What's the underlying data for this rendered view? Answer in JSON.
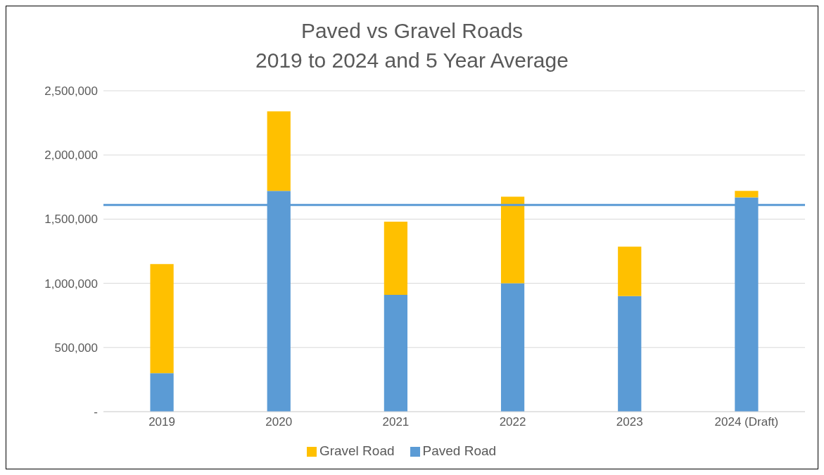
{
  "chart_data": {
    "type": "bar",
    "title": "Paved vs Gravel Roads",
    "subtitle": "2019 to 2024 and 5 Year Average",
    "categories": [
      "2019",
      "2020",
      "2021",
      "2022",
      "2023",
      "2024 (Draft)"
    ],
    "stacked": true,
    "series": [
      {
        "name": "Paved Road",
        "color": "#5b9bd5",
        "values": [
          300000,
          1720000,
          910000,
          1000000,
          900000,
          1670000
        ]
      },
      {
        "name": "Gravel Road",
        "color": "#ffc000",
        "values": [
          850000,
          620000,
          570000,
          675000,
          385000,
          50000
        ]
      }
    ],
    "ylim": [
      0,
      2500000
    ],
    "yticks": [
      {
        "value": 0,
        "label": "-"
      },
      {
        "value": 500000,
        "label": "500,000"
      },
      {
        "value": 1000000,
        "label": "1,000,000"
      },
      {
        "value": 1500000,
        "label": "1,500,000"
      },
      {
        "value": 2000000,
        "label": "2,000,000"
      },
      {
        "value": 2500000,
        "label": "2,500,000"
      }
    ],
    "ref_lines": [
      {
        "axis": "y",
        "value": 1610000,
        "color": "#5b9bd5"
      }
    ],
    "grid": "y",
    "legend": "bottom"
  }
}
